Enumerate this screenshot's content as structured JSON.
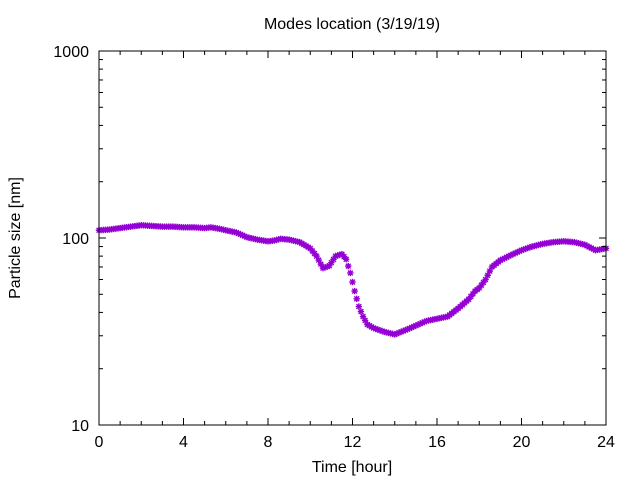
{
  "chart_data": {
    "type": "scatter",
    "title": "Modes location (3/19/19)",
    "xlabel": "Time [hour]",
    "ylabel": "Particle size [nm]",
    "xlim": [
      0,
      24
    ],
    "ylim": [
      10,
      1000
    ],
    "yscale": "log",
    "x_ticks": [
      0,
      4,
      8,
      12,
      16,
      20,
      24
    ],
    "x_tick_labels": [
      "0",
      "4",
      "8",
      "12",
      "16",
      "20",
      "24"
    ],
    "y_ticks": [
      10,
      100,
      1000
    ],
    "y_tick_labels": [
      "10",
      "100",
      "1000"
    ],
    "grid": false,
    "legend": "none",
    "marker_color": "#9400d3",
    "series": [
      {
        "x": [
          0.0,
          0.5,
          1.0,
          1.5,
          2.0,
          2.5,
          3.0,
          3.5,
          4.0,
          4.5,
          5.0,
          5.3,
          5.7,
          6.0,
          6.5,
          7.0,
          7.5,
          8.0,
          8.3,
          8.6,
          9.0,
          9.5,
          10.0,
          10.3,
          10.6,
          10.9,
          11.2,
          11.5,
          11.7,
          11.9,
          12.1,
          12.3,
          12.5,
          12.7,
          13.0,
          13.5,
          14.0,
          14.3,
          14.6,
          15.0,
          15.5,
          16.0,
          16.5,
          17.0,
          17.5,
          17.8,
          18.0,
          18.3,
          18.6,
          19.0,
          19.5,
          20.0,
          20.5,
          21.0,
          21.5,
          22.0,
          22.5,
          23.0,
          23.5,
          24.0
        ],
        "y": [
          110,
          111,
          113,
          115,
          117,
          116,
          115,
          115,
          114,
          114,
          113,
          114,
          112,
          110,
          107,
          101,
          98,
          96,
          97,
          99,
          98,
          95,
          88,
          80,
          69,
          71,
          80,
          82,
          77,
          65,
          52,
          43,
          38,
          34.5,
          33,
          31.5,
          30.5,
          31.5,
          32.5,
          34,
          36,
          37,
          38,
          42,
          47,
          52,
          54,
          60,
          70,
          76,
          81,
          86,
          90,
          93,
          95,
          96,
          95,
          92,
          86,
          88
        ]
      }
    ]
  }
}
